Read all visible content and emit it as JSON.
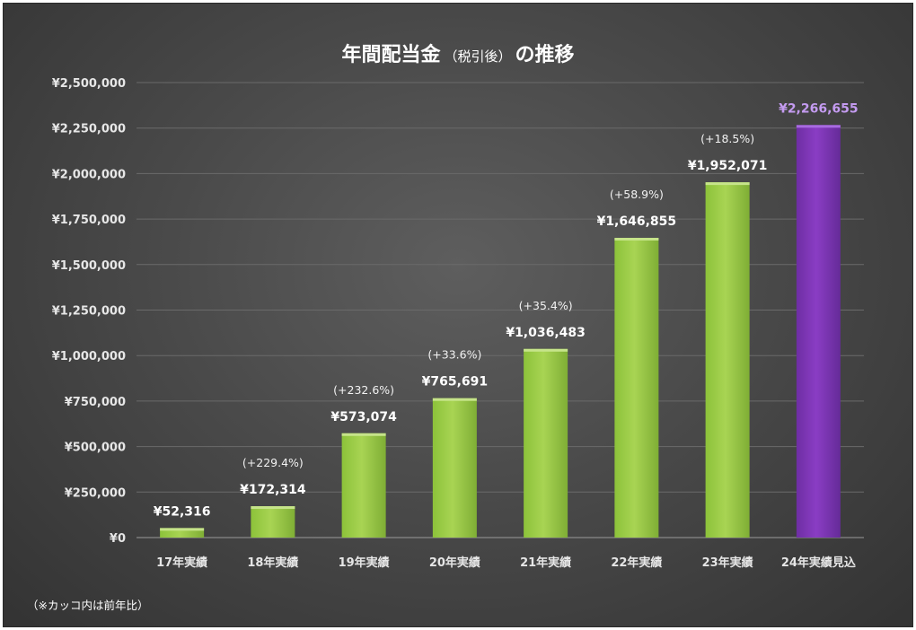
{
  "chart_data": {
    "type": "bar",
    "title": "年間配当金",
    "title_note": "（税引後）",
    "title_suffix": "の推移",
    "categories": [
      "17年実績",
      "18年実績",
      "19年実績",
      "20年実績",
      "21年実績",
      "22年実績",
      "23年実績",
      "24年実績見込"
    ],
    "values": [
      52316,
      172314,
      573074,
      765691,
      1036483,
      1646855,
      1952071,
      2266655
    ],
    "value_labels": [
      "¥52,316",
      "¥172,314",
      "¥573,074",
      "¥765,691",
      "¥1,036,483",
      "¥1,646,855",
      "¥1,952,071",
      "¥2,266,655"
    ],
    "yoy_labels": [
      "",
      "(+229.4%)",
      "(+232.6%)",
      "(+33.6%)",
      "(+35.4%)",
      "(+58.9%)",
      "(+18.5%)",
      ""
    ],
    "highlight_index": 7,
    "ylim": [
      0,
      2500000
    ],
    "y_ticks": [
      0,
      250000,
      500000,
      750000,
      1000000,
      1250000,
      1500000,
      1750000,
      2000000,
      2250000,
      2500000
    ],
    "y_tick_labels": [
      "¥0",
      "¥250,000",
      "¥500,000",
      "¥750,000",
      "¥1,000,000",
      "¥1,250,000",
      "¥1,500,000",
      "¥1,750,000",
      "¥2,000,000",
      "¥2,250,000",
      "¥2,500,000"
    ],
    "grid": true,
    "legend": "none",
    "colors": {
      "bar": "#9ccc47",
      "highlight_bar": "#7a35b0",
      "background": "#4a4a4a"
    }
  },
  "footnote": "（※カッコ内は前年比）"
}
